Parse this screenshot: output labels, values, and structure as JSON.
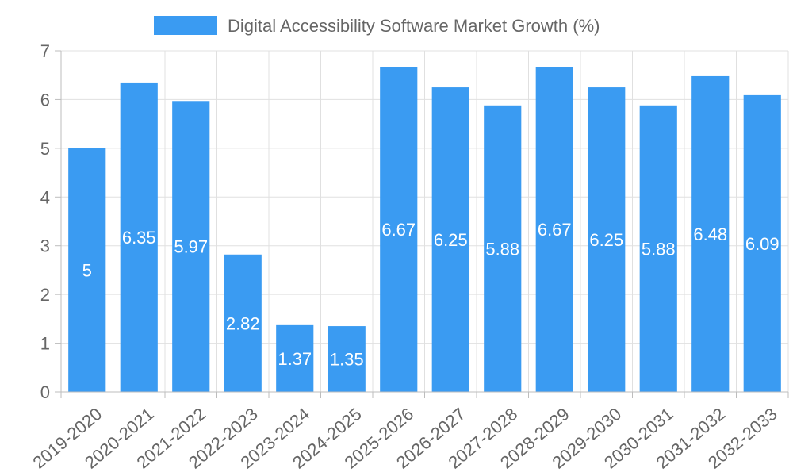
{
  "chart_data": {
    "type": "bar",
    "categories": [
      "2019-2020",
      "2020-2021",
      "2021-2022",
      "2022-2023",
      "2023-2024",
      "2024-2025",
      "2025-2026",
      "2026-2027",
      "2027-2028",
      "2028-2029",
      "2029-2030",
      "2030-2031",
      "2031-2032",
      "2032-2033"
    ],
    "series": [
      {
        "name": "Digital Accessibility Software Market Growth (%)",
        "values": [
          5,
          6.35,
          5.97,
          2.82,
          1.37,
          1.35,
          6.67,
          6.25,
          5.88,
          6.67,
          6.25,
          5.88,
          6.48,
          6.09
        ],
        "color": "#3a9bf2"
      }
    ],
    "data_labels": [
      "5",
      "6.35",
      "5.97",
      "2.82",
      "1.37",
      "1.35",
      "6.67",
      "6.25",
      "5.88",
      "6.67",
      "6.25",
      "5.88",
      "6.48",
      "6.09"
    ],
    "y_ticks": [
      "0",
      "1",
      "2",
      "3",
      "4",
      "5",
      "6",
      "7"
    ],
    "title": "",
    "xlabel": "",
    "ylabel": "",
    "ylim": [
      0,
      7
    ],
    "grid": true,
    "legend_position": "top",
    "colors": {
      "grid": "#e0e0e0",
      "axis": "#bdbdbd",
      "tick_text": "#666666",
      "data_label_text": "#ffffff"
    }
  }
}
